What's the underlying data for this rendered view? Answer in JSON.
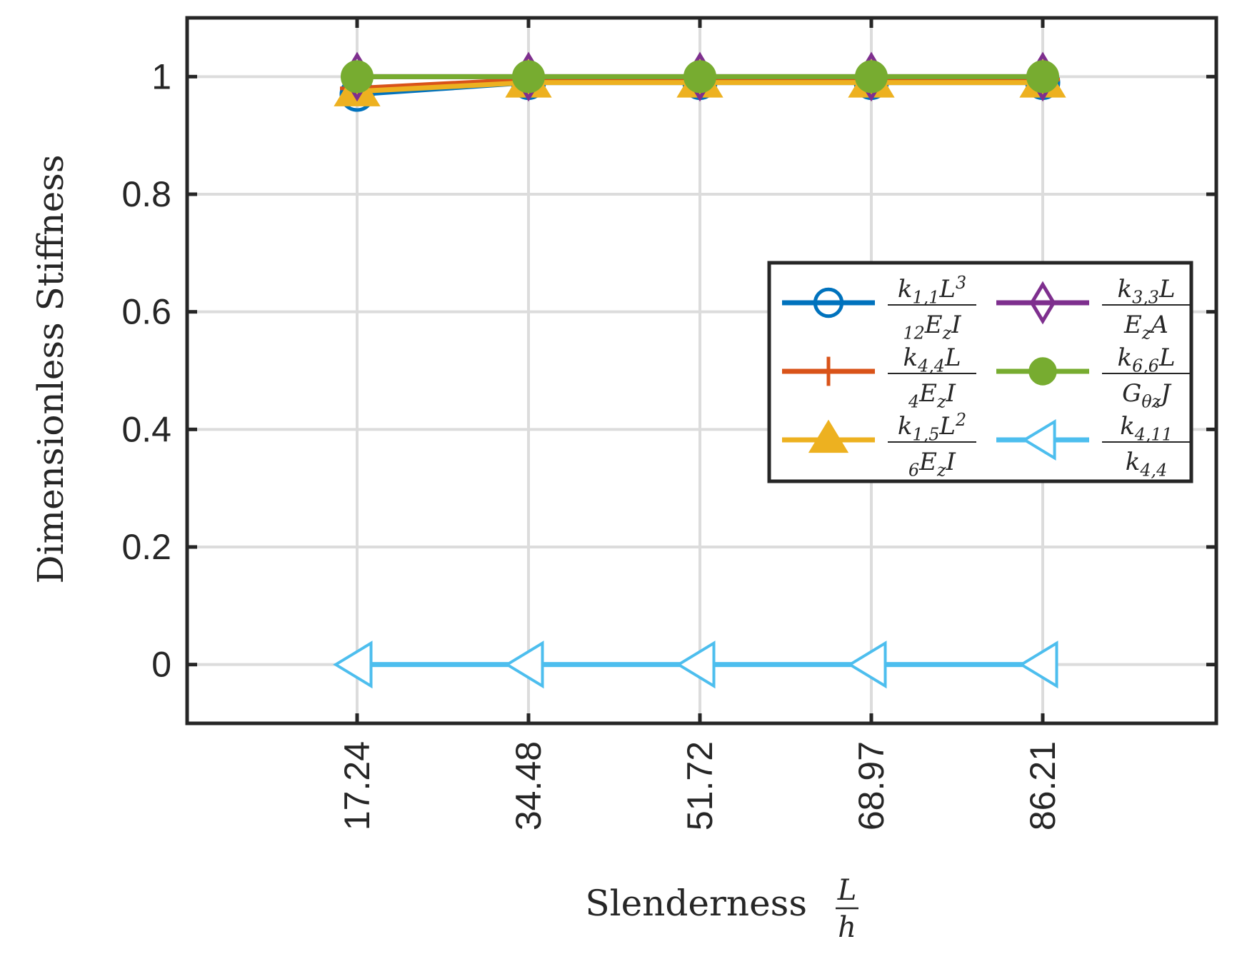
{
  "chart_data": {
    "type": "line",
    "title": "",
    "xlabel": "Slenderness",
    "xlabel_fraction": {
      "numerator": "L",
      "denominator": "h"
    },
    "ylabel": "Dimensionless Stiffness",
    "x_categories": [
      "17.24",
      "34.48",
      "51.72",
      "68.97",
      "86.21"
    ],
    "y_ticks": [
      0,
      0.2,
      0.4,
      0.6,
      0.8,
      1
    ],
    "y_tick_labels": [
      "0",
      "0.2",
      "0.4",
      "0.6",
      "0.8",
      "1"
    ],
    "ylim": [
      -0.1,
      1.1
    ],
    "grid": true,
    "legend_position": "center-right",
    "legend_columns": 2,
    "series": [
      {
        "name": "k_{1,1}L^3 / 12E_zI",
        "legend": {
          "num": "k1,1L3",
          "den": "12EzI"
        },
        "marker": "circle",
        "color": "#0072BD",
        "values": [
          0.97,
          0.99,
          0.99,
          0.99,
          0.99
        ]
      },
      {
        "name": "k_{4,4}L / 4E_zI",
        "legend": {
          "num": "k4,4L",
          "den": "4EzI"
        },
        "marker": "plus",
        "color": "#D95319",
        "values": [
          0.98,
          0.995,
          0.995,
          0.995,
          0.995
        ]
      },
      {
        "name": "k_{1,5}L^2 / 6E_zI",
        "legend": {
          "num": "k1,5L2",
          "den": "6EzI"
        },
        "marker": "triangle-up",
        "color": "#EDB120",
        "values": [
          0.975,
          0.99,
          0.99,
          0.99,
          0.99
        ]
      },
      {
        "name": "k_{3,3}L / E_zA",
        "legend": {
          "num": "k3,3L",
          "den": "EzA"
        },
        "marker": "diamond",
        "color": "#7E2F8E",
        "values": [
          1.0,
          1.0,
          1.0,
          1.0,
          1.0
        ]
      },
      {
        "name": "k_{6,6}L / G_{θz}J",
        "legend": {
          "num": "k6,6L",
          "den": "GθzJ"
        },
        "marker": "dot",
        "color": "#77AC30",
        "values": [
          1.0,
          1.0,
          1.0,
          1.0,
          1.0
        ]
      },
      {
        "name": "k_{4,11} / k_{4,4}",
        "legend": {
          "num": "k4,11",
          "den": "k4,4"
        },
        "marker": "triangle-left",
        "color": "#4DBEEE",
        "values": [
          0,
          0,
          0,
          0,
          0
        ]
      }
    ]
  }
}
